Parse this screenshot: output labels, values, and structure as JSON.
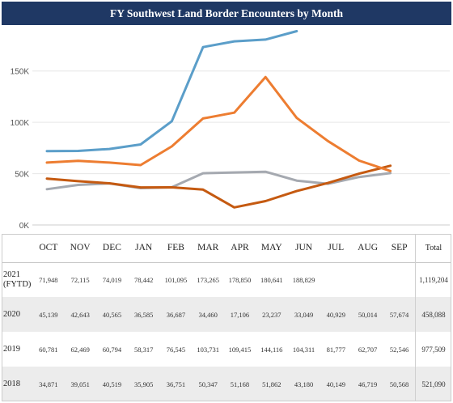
{
  "title": "FY Southwest Land Border Encounters by Month",
  "chart_data": {
    "type": "line",
    "categories": [
      "OCT",
      "NOV",
      "DEC",
      "JAN",
      "FEB",
      "MAR",
      "APR",
      "MAY",
      "JUN",
      "JUL",
      "AUG",
      "SEP"
    ],
    "ylim": [
      0,
      190000
    ],
    "yticks": [
      0,
      50000,
      100000,
      150000
    ],
    "ytick_labels": [
      "0K",
      "50K",
      "100K",
      "150K"
    ],
    "grid": "horizontal",
    "series": [
      {
        "name": "2021 (FYTD)",
        "color": "#5b9ec9",
        "values": [
          71948,
          72115,
          74019,
          78442,
          101095,
          173265,
          178850,
          180641,
          188829,
          null,
          null,
          null
        ]
      },
      {
        "name": "2020",
        "color": "#c55a11",
        "values": [
          45139,
          42643,
          40565,
          36585,
          36687,
          34460,
          17106,
          23237,
          33049,
          40929,
          50014,
          57674
        ]
      },
      {
        "name": "2019",
        "color": "#ed7d31",
        "values": [
          60781,
          62469,
          60794,
          58317,
          76545,
          103731,
          109415,
          144116,
          104311,
          81777,
          62707,
          52546
        ]
      },
      {
        "name": "2018",
        "color": "#a5a9b0",
        "values": [
          34871,
          39051,
          40519,
          35905,
          36751,
          50347,
          51168,
          51862,
          43180,
          40149,
          46719,
          50568
        ]
      }
    ]
  },
  "table": {
    "total_header": "Total",
    "rows": [
      {
        "year": "2021 (FYTD)",
        "values": [
          "71,948",
          "72,115",
          "74,019",
          "78,442",
          "101,095",
          "173,265",
          "178,850",
          "180,641",
          "188,829",
          "",
          "",
          ""
        ],
        "total": "1,119,204",
        "shaded": false
      },
      {
        "year": "2020",
        "values": [
          "45,139",
          "42,643",
          "40,565",
          "36,585",
          "36,687",
          "34,460",
          "17,106",
          "23,237",
          "33,049",
          "40,929",
          "50,014",
          "57,674"
        ],
        "total": "458,088",
        "shaded": true
      },
      {
        "year": "2019",
        "values": [
          "60,781",
          "62,469",
          "60,794",
          "58,317",
          "76,545",
          "103,731",
          "109,415",
          "144,116",
          "104,311",
          "81,777",
          "62,707",
          "52,546"
        ],
        "total": "977,509",
        "shaded": false
      },
      {
        "year": "2018",
        "values": [
          "34,871",
          "39,051",
          "40,519",
          "35,905",
          "36,751",
          "50,347",
          "51,168",
          "51,862",
          "43,180",
          "40,149",
          "46,719",
          "50,568"
        ],
        "total": "521,090",
        "shaded": true
      }
    ]
  }
}
